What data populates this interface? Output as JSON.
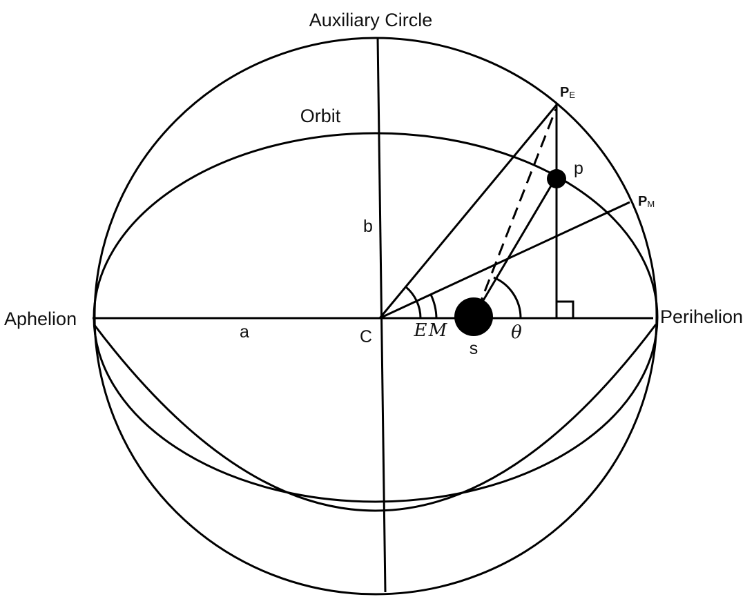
{
  "labels": {
    "auxiliary_circle": "Auxiliary Circle",
    "orbit": "Orbit",
    "aphelion": "Aphelion",
    "perihelion": "Perihelion",
    "semi_major": "a",
    "semi_minor": "b",
    "center": "C",
    "eccentric_anomaly": "E",
    "mean_anomaly": "M",
    "true_anomaly": "θ",
    "sun": "s",
    "planet": "p",
    "point_eccentric": {
      "main": "P",
      "sub": "E"
    },
    "point_mean": {
      "main": "P",
      "sub": "M"
    }
  },
  "colors": {
    "ink": "#000000",
    "background": "#ffffff"
  }
}
